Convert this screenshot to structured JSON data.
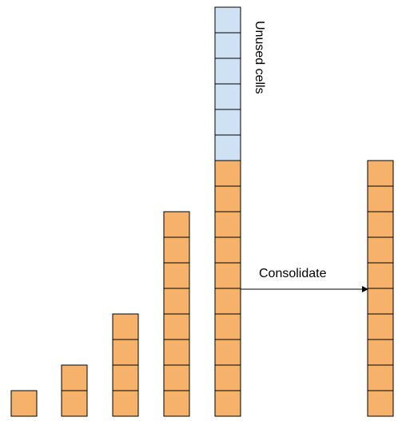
{
  "labels": {
    "unused": "Unused cells",
    "consolidate": "Consolidate"
  },
  "colors": {
    "used_fill": "#f6b26b",
    "unused_fill": "#cfe2f3",
    "border": "#000000"
  },
  "stacks": [
    {
      "used": 1,
      "unused": 0
    },
    {
      "used": 2,
      "unused": 0
    },
    {
      "used": 4,
      "unused": 0
    },
    {
      "used": 8,
      "unused": 0
    },
    {
      "used": 10,
      "unused": 6
    },
    {
      "used": 10,
      "unused": 0
    }
  ]
}
